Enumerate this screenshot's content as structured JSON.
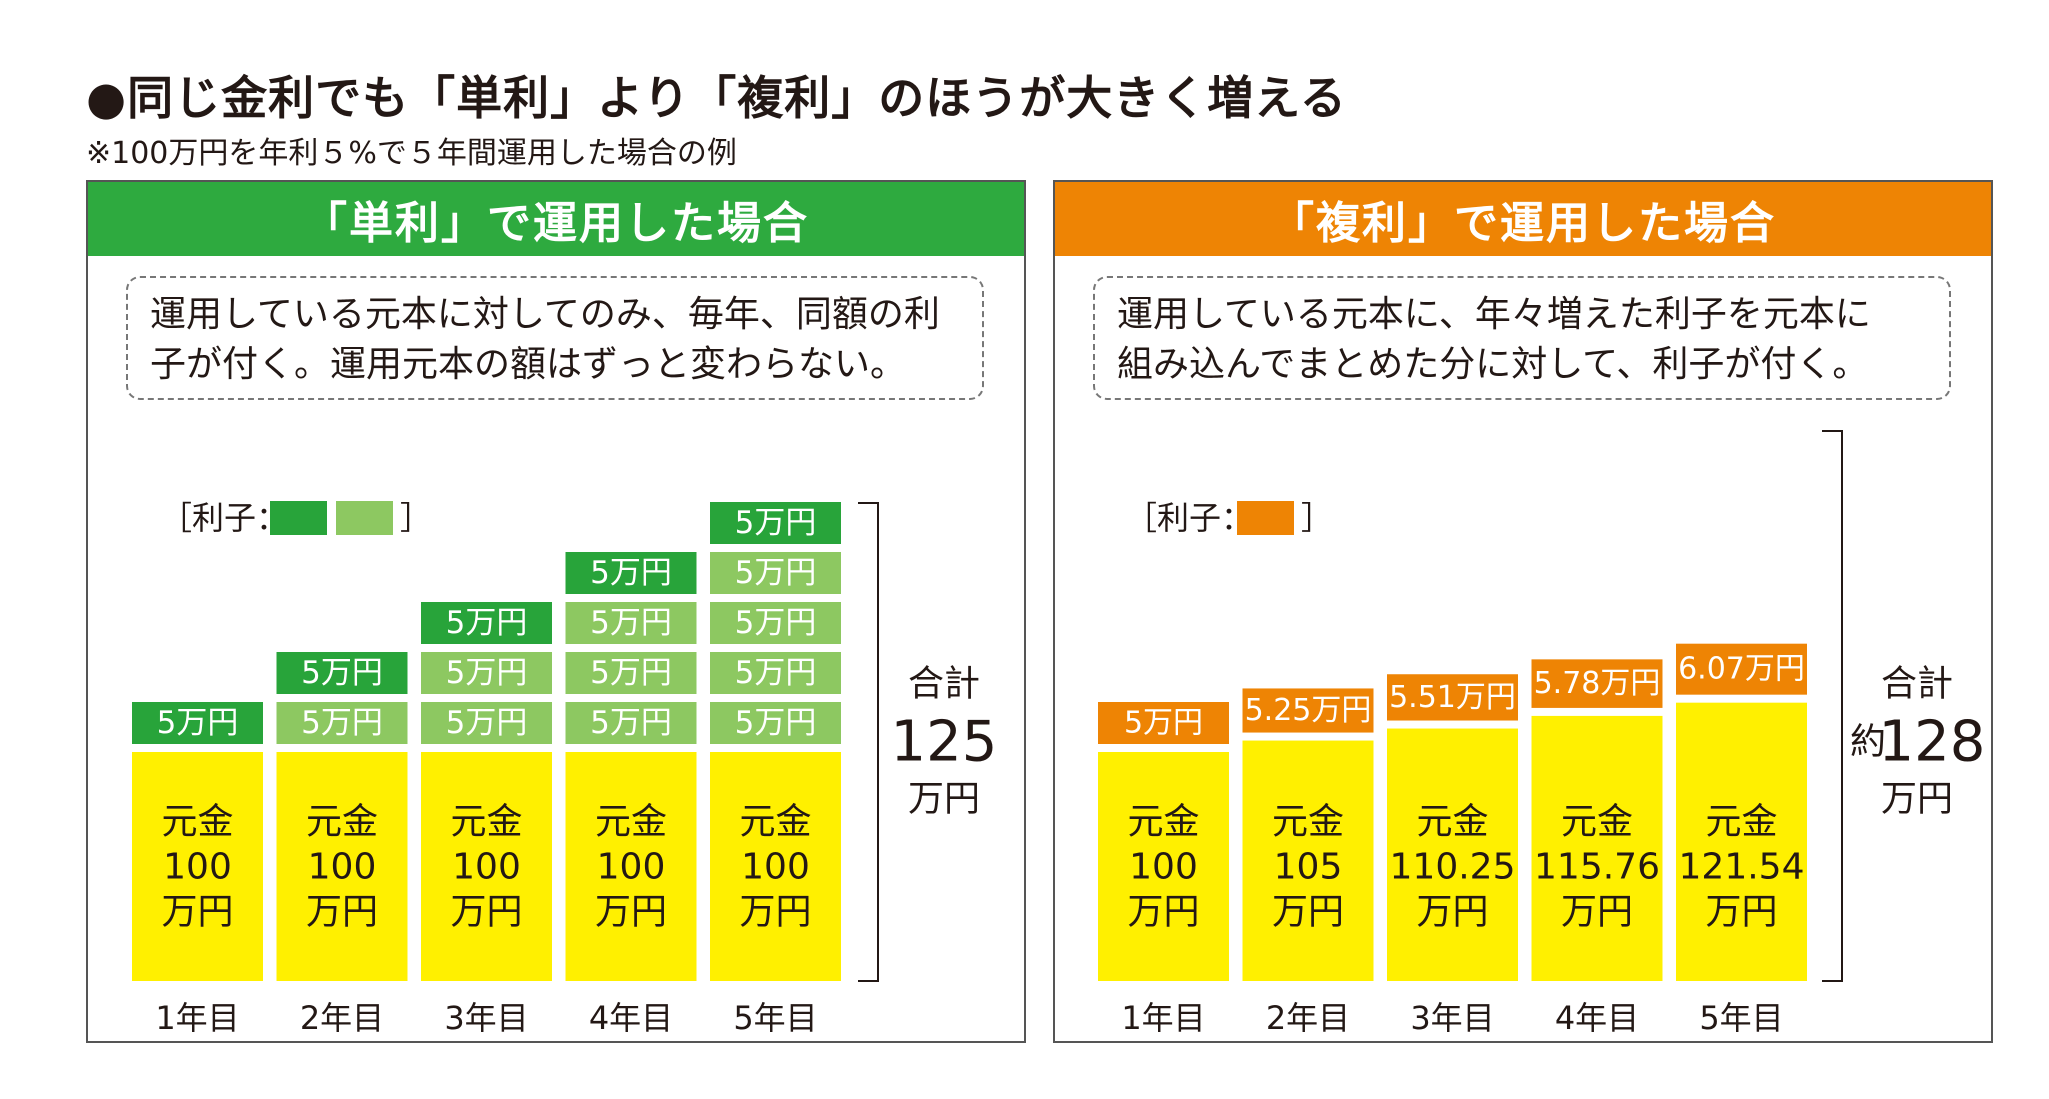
{
  "title": "●同じ金利でも「単利」より「複利」のほうが大きく増える",
  "subtitle": "※100万円を年利５%で５年間運用した場合の例",
  "colors": {
    "green_header": "#2eaa3f",
    "orange_header": "#ee8404",
    "interest_dark_green": "#28a43a",
    "interest_light_green": "#8dc861",
    "interest_orange": "#ee8404",
    "principal_yellow": "#fff000"
  },
  "simple": {
    "header": "「単利」で運用した場合",
    "description": "運用している元本に対してのみ、毎年、同額の利\n子が付く。運用元本の額はずっと変わらない。",
    "legend_label": "［利子：",
    "legend_close": "］",
    "total_label": "合計",
    "total_value": "125",
    "total_unit": "万円"
  },
  "compound": {
    "header": "「複利」で運用した場合",
    "description": "運用している元本に、年々増えた利子を元本に\n組み込んでまとめた分に対して、利子が付く。",
    "legend_label": "［利子：",
    "legend_close": "］",
    "total_label": "合計",
    "total_prefix": "約",
    "total_value": "128",
    "total_unit": "万円"
  },
  "chart_data": [
    {
      "type": "bar",
      "stacked": true,
      "title": "「単利」で運用した場合",
      "categories": [
        "1年目",
        "2年目",
        "3年目",
        "4年目",
        "5年目"
      ],
      "principal": {
        "label_top": "元金",
        "label_unit": "万円",
        "values": [
          100,
          100,
          100,
          100,
          100
        ],
        "value_labels": [
          "100",
          "100",
          "100",
          "100",
          "100"
        ]
      },
      "interest_layers": [
        [
          "5万円"
        ],
        [
          "5万円",
          "5万円"
        ],
        [
          "5万円",
          "5万円",
          "5万円"
        ],
        [
          "5万円",
          "5万円",
          "5万円",
          "5万円"
        ],
        [
          "5万円",
          "5万円",
          "5万円",
          "5万円",
          "5万円"
        ]
      ],
      "interest_values": [
        5,
        5,
        5,
        5,
        5
      ],
      "total": 125
    },
    {
      "type": "bar",
      "stacked": true,
      "title": "「複利」で運用した場合",
      "categories": [
        "1年目",
        "2年目",
        "3年目",
        "4年目",
        "5年目"
      ],
      "principal": {
        "label_top": "元金",
        "label_unit": "万円",
        "values": [
          100,
          105,
          110.25,
          115.76,
          121.54
        ],
        "value_labels": [
          "100",
          "105",
          "110.25",
          "115.76",
          "121.54"
        ]
      },
      "interest_values": [
        5,
        5.25,
        5.51,
        5.78,
        6.07
      ],
      "interest_labels": [
        "5万円",
        "5.25万円",
        "5.51万円",
        "5.78万円",
        "6.07万円"
      ],
      "total": 128
    }
  ]
}
